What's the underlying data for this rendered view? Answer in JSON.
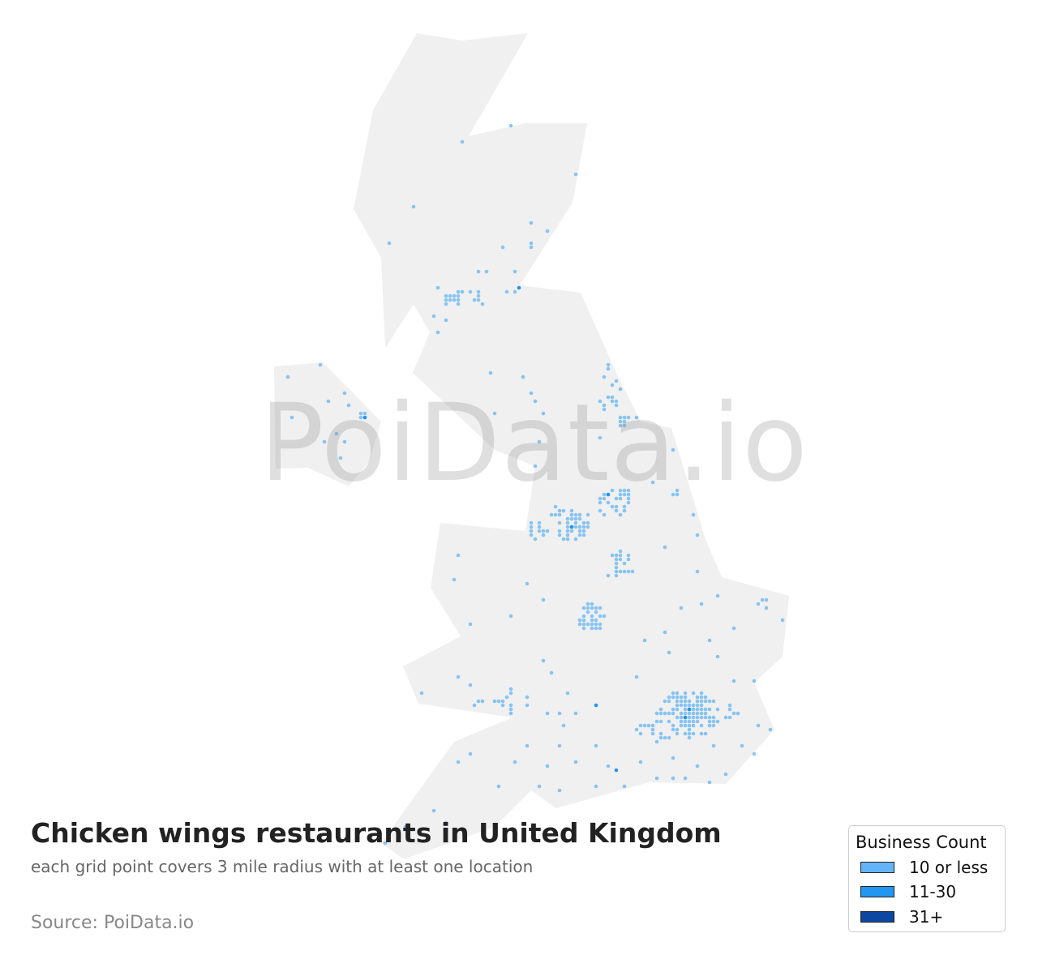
{
  "title": "Chicken wings restaurants in United Kingdom",
  "subtitle": "each grid point covers 3 mile radius with at least one location",
  "source": "Source: PoiData.io",
  "watermark": "PoiData.io",
  "colors": {
    "land": "#f0f0f0",
    "low": "#64b5f6",
    "mid": "#2196f3",
    "high": "#0d47a1"
  },
  "legend": {
    "title": "Business Count",
    "items": [
      {
        "label": "10 or less",
        "color": "#64b5f6"
      },
      {
        "label": "11-30",
        "color": "#2196f3"
      },
      {
        "label": "31+",
        "color": "#0d47a1"
      }
    ]
  }
}
